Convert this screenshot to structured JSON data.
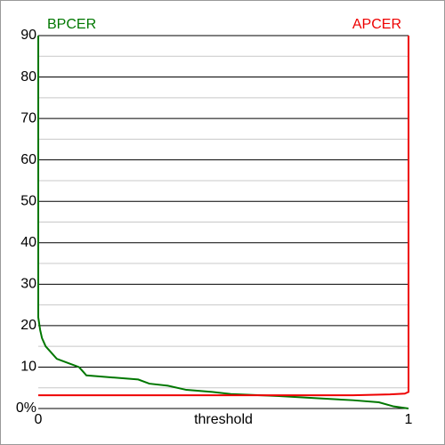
{
  "chart_data": {
    "type": "line",
    "xlabel": "threshold",
    "xlim": [
      0,
      1
    ],
    "xticks": [
      0,
      1
    ],
    "ylim": [
      0,
      90
    ],
    "yticks": [
      {
        "value": 0,
        "label": "0%"
      },
      10,
      20,
      30,
      40,
      50,
      60,
      70,
      80,
      90
    ],
    "minor_yticks": [
      5,
      15,
      25,
      35,
      45,
      55,
      65,
      75,
      85
    ],
    "grid": true,
    "series": [
      {
        "name": "BPCER",
        "color": "#007700",
        "x": [
          0,
          0,
          0.005,
          0.01,
          0.02,
          0.03,
          0.05,
          0.08,
          0.11,
          0.12,
          0.13,
          0.2,
          0.27,
          0.3,
          0.35,
          0.4,
          0.47,
          0.52,
          0.6,
          0.65,
          0.75,
          0.85,
          0.92,
          0.96,
          1
        ],
        "values": [
          90,
          22,
          19,
          17,
          15,
          14,
          12,
          11,
          10,
          9,
          8,
          7.5,
          7,
          6,
          5.5,
          4.5,
          4,
          3.5,
          3.2,
          3,
          2.5,
          2,
          1.5,
          0.5,
          0
        ]
      },
      {
        "name": "APCER",
        "color": "#ee0000",
        "x": [
          0,
          0.85,
          0.95,
          0.99,
          1,
          1
        ],
        "values": [
          3.2,
          3.2,
          3.4,
          3.6,
          4,
          90
        ]
      }
    ]
  }
}
